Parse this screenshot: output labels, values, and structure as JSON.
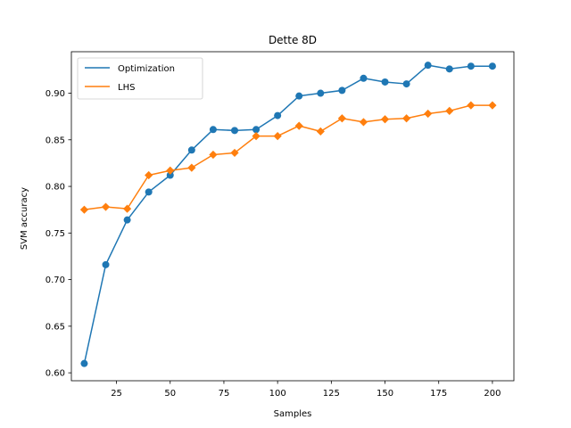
{
  "chart_data": {
    "type": "line",
    "title": "Dette 8D",
    "xlabel": "Samples",
    "ylabel": "SVM accuracy",
    "xlim": [
      4,
      210
    ],
    "ylim": [
      0.5915,
      0.9445
    ],
    "xticks": [
      25,
      50,
      75,
      100,
      125,
      150,
      175,
      200
    ],
    "xtick_labels": [
      "25",
      "50",
      "75",
      "100",
      "125",
      "150",
      "175",
      "200"
    ],
    "yticks": [
      0.6,
      0.65,
      0.7,
      0.75,
      0.8,
      0.85,
      0.9
    ],
    "ytick_labels": [
      "0.60",
      "0.65",
      "0.70",
      "0.75",
      "0.80",
      "0.85",
      "0.90"
    ],
    "grid": false,
    "legend_position": "top-left",
    "x": [
      10,
      20,
      30,
      40,
      50,
      60,
      70,
      80,
      90,
      100,
      110,
      120,
      130,
      140,
      150,
      160,
      170,
      180,
      190,
      200
    ],
    "series": [
      {
        "name": "Optimization",
        "color": "#1f77b4",
        "marker": "circle",
        "values": [
          0.61,
          0.716,
          0.764,
          0.794,
          0.812,
          0.839,
          0.861,
          0.86,
          0.861,
          0.876,
          0.897,
          0.9,
          0.903,
          0.916,
          0.912,
          0.91,
          0.93,
          0.926,
          0.929,
          0.929
        ]
      },
      {
        "name": "LHS",
        "color": "#ff7f0e",
        "marker": "diamond",
        "values": [
          0.775,
          0.778,
          0.776,
          0.812,
          0.817,
          0.82,
          0.834,
          0.836,
          0.854,
          0.854,
          0.865,
          0.859,
          0.873,
          0.869,
          0.872,
          0.873,
          0.878,
          0.881,
          0.887,
          0.887
        ]
      }
    ]
  }
}
